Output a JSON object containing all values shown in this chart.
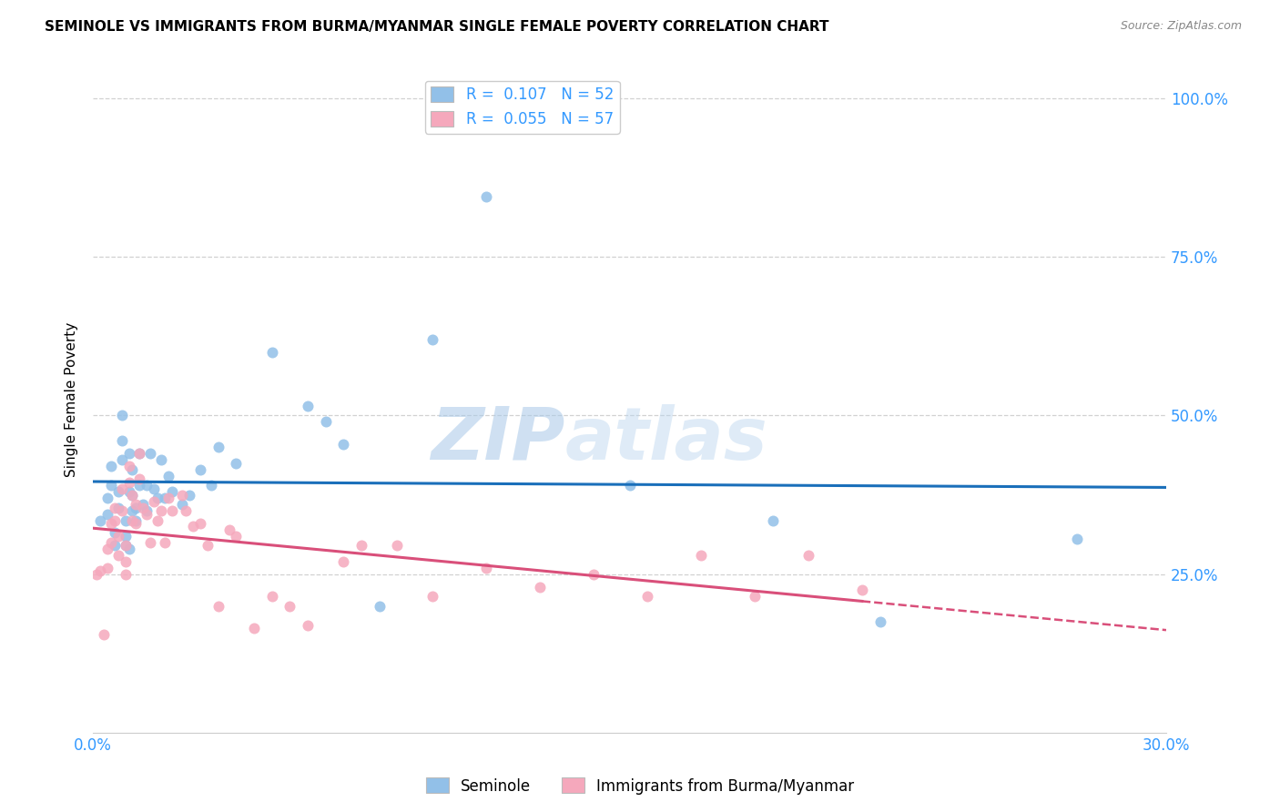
{
  "title": "SEMINOLE VS IMMIGRANTS FROM BURMA/MYANMAR SINGLE FEMALE POVERTY CORRELATION CHART",
  "source": "Source: ZipAtlas.com",
  "ylabel": "Single Female Poverty",
  "yticks": [
    "100.0%",
    "75.0%",
    "50.0%",
    "25.0%"
  ],
  "ytick_vals": [
    1.0,
    0.75,
    0.5,
    0.25
  ],
  "xlim": [
    0.0,
    0.3
  ],
  "ylim": [
    0.0,
    1.05
  ],
  "legend1_R": "0.107",
  "legend1_N": "52",
  "legend2_R": "0.055",
  "legend2_N": "57",
  "color_blue": "#92c0e8",
  "color_pink": "#f5a8bc",
  "color_blue_line": "#1a6fba",
  "color_pink_line": "#d94f7a",
  "color_axis_label": "#3399ff",
  "watermark_zip": "ZIP",
  "watermark_atlas": "atlas",
  "seminole_x": [
    0.002,
    0.004,
    0.004,
    0.005,
    0.005,
    0.006,
    0.006,
    0.007,
    0.007,
    0.008,
    0.008,
    0.008,
    0.009,
    0.009,
    0.009,
    0.01,
    0.01,
    0.01,
    0.011,
    0.011,
    0.011,
    0.012,
    0.012,
    0.013,
    0.013,
    0.014,
    0.015,
    0.015,
    0.016,
    0.017,
    0.018,
    0.019,
    0.02,
    0.021,
    0.022,
    0.025,
    0.027,
    0.03,
    0.033,
    0.035,
    0.04,
    0.05,
    0.06,
    0.065,
    0.07,
    0.08,
    0.095,
    0.11,
    0.15,
    0.19,
    0.22,
    0.275
  ],
  "seminole_y": [
    0.335,
    0.37,
    0.345,
    0.42,
    0.39,
    0.315,
    0.295,
    0.38,
    0.355,
    0.5,
    0.46,
    0.43,
    0.295,
    0.335,
    0.31,
    0.44,
    0.38,
    0.29,
    0.415,
    0.375,
    0.35,
    0.355,
    0.335,
    0.44,
    0.39,
    0.36,
    0.39,
    0.35,
    0.44,
    0.385,
    0.37,
    0.43,
    0.37,
    0.405,
    0.38,
    0.36,
    0.375,
    0.415,
    0.39,
    0.45,
    0.425,
    0.6,
    0.515,
    0.49,
    0.455,
    0.2,
    0.62,
    0.845,
    0.39,
    0.335,
    0.175,
    0.305
  ],
  "burma_x": [
    0.001,
    0.002,
    0.003,
    0.004,
    0.004,
    0.005,
    0.005,
    0.006,
    0.006,
    0.007,
    0.007,
    0.008,
    0.008,
    0.009,
    0.009,
    0.009,
    0.01,
    0.01,
    0.011,
    0.011,
    0.012,
    0.012,
    0.013,
    0.013,
    0.014,
    0.015,
    0.016,
    0.017,
    0.018,
    0.019,
    0.02,
    0.021,
    0.022,
    0.025,
    0.026,
    0.028,
    0.03,
    0.032,
    0.035,
    0.038,
    0.04,
    0.045,
    0.05,
    0.055,
    0.06,
    0.07,
    0.075,
    0.085,
    0.095,
    0.11,
    0.125,
    0.14,
    0.155,
    0.17,
    0.185,
    0.2,
    0.215
  ],
  "burma_y": [
    0.25,
    0.255,
    0.155,
    0.29,
    0.26,
    0.33,
    0.3,
    0.355,
    0.335,
    0.31,
    0.28,
    0.385,
    0.35,
    0.295,
    0.27,
    0.25,
    0.42,
    0.395,
    0.375,
    0.335,
    0.36,
    0.33,
    0.44,
    0.4,
    0.355,
    0.345,
    0.3,
    0.365,
    0.335,
    0.35,
    0.3,
    0.37,
    0.35,
    0.375,
    0.35,
    0.325,
    0.33,
    0.295,
    0.2,
    0.32,
    0.31,
    0.165,
    0.215,
    0.2,
    0.17,
    0.27,
    0.295,
    0.295,
    0.215,
    0.26,
    0.23,
    0.25,
    0.215,
    0.28,
    0.215,
    0.28,
    0.225
  ]
}
